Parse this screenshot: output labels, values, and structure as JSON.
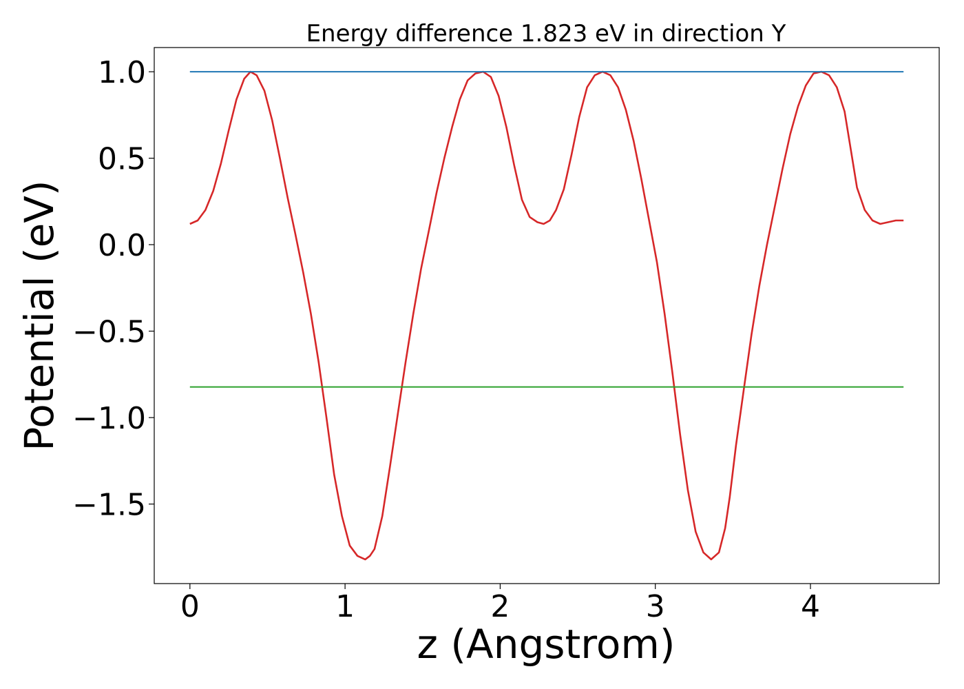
{
  "chart_data": {
    "type": "line",
    "title": "Energy difference 1.823 eV in direction Y",
    "xlabel": "z (Angstrom)",
    "ylabel": "Potential (eV)",
    "xlim": [
      -0.23,
      4.83
    ],
    "ylim": [
      -1.96,
      1.14
    ],
    "x_ticks": [
      0,
      1,
      2,
      3,
      4
    ],
    "x_tick_labels": [
      "0",
      "1",
      "2",
      "3",
      "4"
    ],
    "y_ticks": [
      1.0,
      0.5,
      0.0,
      -0.5,
      -1.0,
      -1.5
    ],
    "y_tick_labels": [
      "1.0",
      "0.5",
      "0.0",
      "−0.5",
      "−1.0",
      "−1.5"
    ],
    "grid": false,
    "legend": "none",
    "series": [
      {
        "color": "#d62728",
        "x": [
          0.0,
          0.05,
          0.1,
          0.15,
          0.2,
          0.25,
          0.3,
          0.35,
          0.39,
          0.43,
          0.48,
          0.53,
          0.58,
          0.63,
          0.68,
          0.73,
          0.78,
          0.83,
          0.88,
          0.93,
          0.98,
          1.03,
          1.08,
          1.13,
          1.16,
          1.19,
          1.24,
          1.29,
          1.34,
          1.39,
          1.44,
          1.49,
          1.54,
          1.59,
          1.64,
          1.69,
          1.74,
          1.79,
          1.84,
          1.89,
          1.94,
          1.99,
          2.04,
          2.09,
          2.14,
          2.19,
          2.24,
          2.28,
          2.32,
          2.36,
          2.41,
          2.46,
          2.51,
          2.56,
          2.61,
          2.66,
          2.71,
          2.76,
          2.81,
          2.86,
          2.91,
          2.96,
          3.01,
          3.06,
          3.11,
          3.16,
          3.21,
          3.26,
          3.31,
          3.36,
          3.41,
          3.45,
          3.48,
          3.52,
          3.57,
          3.62,
          3.67,
          3.72,
          3.77,
          3.82,
          3.87,
          3.92,
          3.97,
          4.02,
          4.07,
          4.12,
          4.17,
          4.22,
          4.26,
          4.3,
          4.35,
          4.4,
          4.45,
          4.5,
          4.55,
          4.6
        ],
        "y": [
          0.12,
          0.14,
          0.2,
          0.31,
          0.47,
          0.66,
          0.84,
          0.96,
          1.0,
          0.98,
          0.89,
          0.72,
          0.5,
          0.27,
          0.06,
          -0.16,
          -0.4,
          -0.68,
          -1.0,
          -1.33,
          -1.57,
          -1.74,
          -1.8,
          -1.82,
          -1.8,
          -1.76,
          -1.57,
          -1.28,
          -0.98,
          -0.68,
          -0.4,
          -0.14,
          0.08,
          0.3,
          0.5,
          0.68,
          0.84,
          0.95,
          0.99,
          1.0,
          0.97,
          0.86,
          0.68,
          0.46,
          0.26,
          0.16,
          0.13,
          0.12,
          0.14,
          0.2,
          0.32,
          0.52,
          0.74,
          0.91,
          0.98,
          1.0,
          0.98,
          0.91,
          0.78,
          0.6,
          0.38,
          0.14,
          -0.1,
          -0.4,
          -0.74,
          -1.1,
          -1.42,
          -1.66,
          -1.78,
          -1.82,
          -1.78,
          -1.64,
          -1.46,
          -1.16,
          -0.84,
          -0.52,
          -0.24,
          0.0,
          0.22,
          0.44,
          0.64,
          0.8,
          0.92,
          0.99,
          1.0,
          0.98,
          0.91,
          0.77,
          0.55,
          0.33,
          0.2,
          0.14,
          0.12,
          0.13,
          0.14,
          0.14
        ]
      },
      {
        "color": "#1f77b4",
        "x": [
          0.0,
          4.6
        ],
        "y": [
          1.0,
          1.0
        ]
      },
      {
        "color": "#2ca02c",
        "x": [
          0.0,
          4.6
        ],
        "y": [
          -0.823,
          -0.823
        ]
      }
    ]
  },
  "colors": {
    "axes": "#000000",
    "background": "#ffffff"
  }
}
